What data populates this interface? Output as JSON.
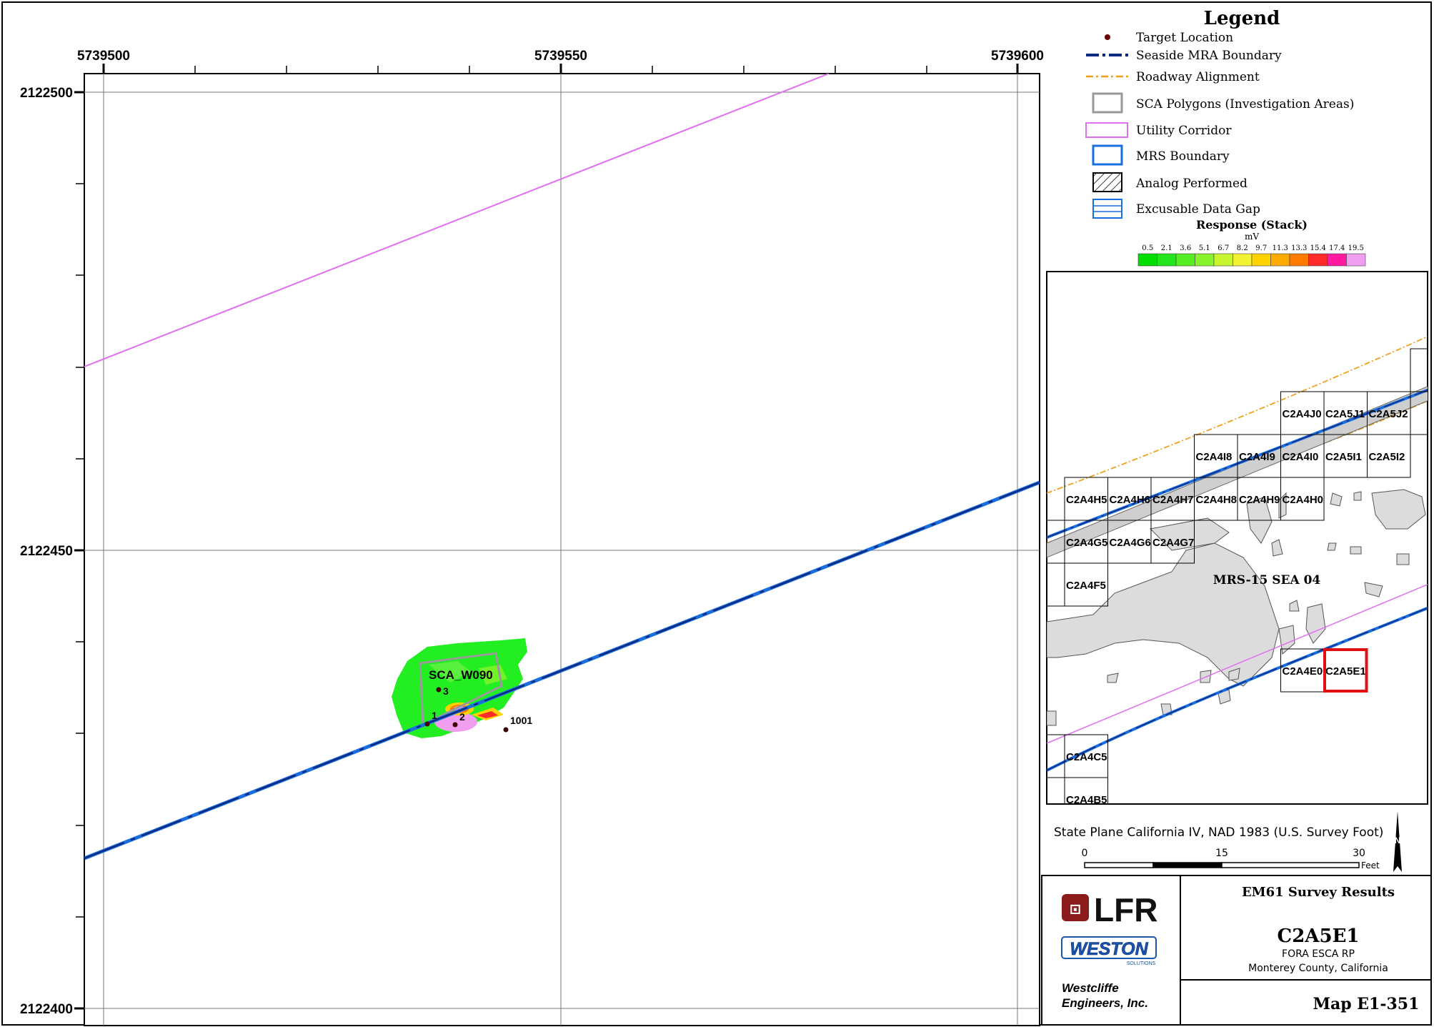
{
  "map": {
    "x_ticks": [
      "5739500",
      "5739550",
      "5739600"
    ],
    "y_ticks": [
      "2122500",
      "2122450",
      "2122400"
    ],
    "sca_label": "SCA_W090",
    "targets": [
      {
        "label": "1"
      },
      {
        "label": "2"
      },
      {
        "label": "3"
      },
      {
        "label": "1001"
      }
    ]
  },
  "legend": {
    "title": "Legend",
    "items": [
      {
        "label": "Target Location",
        "icon": "target-dot-icon"
      },
      {
        "label": "Seaside MRA Boundary",
        "icon": "dash-dot-line-icon"
      },
      {
        "label": "Roadway Alignment",
        "icon": "orange-dash-line-icon"
      },
      {
        "label": "SCA Polygons (Investigation Areas)",
        "icon": "gray-box-icon"
      },
      {
        "label": "Utility Corridor",
        "icon": "violet-box-icon"
      },
      {
        "label": "MRS Boundary",
        "icon": "blue-box-icon"
      },
      {
        "label": "Analog Performed",
        "icon": "hatch-box-icon"
      },
      {
        "label": "Excusable Data Gap",
        "icon": "blue-lines-box-icon"
      }
    ],
    "response_title": "Response (Stack)",
    "response_unit": "mV",
    "scale_values": [
      "0.5",
      "2.1",
      "3.6",
      "5.1",
      "6.7",
      "8.2",
      "9.7",
      "11.3",
      "13.3",
      "15.4",
      "17.4",
      "19.5"
    ],
    "scale_colors": [
      "#00dd00",
      "#22e51c",
      "#55ee22",
      "#88f22a",
      "#c8f52e",
      "#f2f233",
      "#ffd200",
      "#ffaa00",
      "#ff7a00",
      "#ff2a2a",
      "#ff1aa0",
      "#f09ef0"
    ]
  },
  "inset": {
    "area_label": "MRS-15 SEA 04",
    "tiles": [
      "C2A4J0",
      "C2A5J1",
      "C2A5J2",
      "C2A4I8",
      "C2A4I9",
      "C2A4I0",
      "C2A5I1",
      "C2A5I2",
      "C2A4H5",
      "C2A4H6",
      "C2A4H7",
      "C2A4H8",
      "C2A4H9",
      "C2A4H0",
      "C2A4G5",
      "C2A4G6",
      "C2A4G7",
      "C2A4F5",
      "C2A4E0",
      "C2A5E1",
      "C2A4C5",
      "C2A4B5"
    ],
    "highlight": "C2A5E1"
  },
  "projection": "State Plane California IV, NAD 1983 (U.S. Survey Foot)",
  "scalebar": {
    "labels": [
      "0",
      "15",
      "30"
    ],
    "unit": "Feet"
  },
  "north_arrow": "N",
  "title_block": {
    "logo1": "LFR",
    "logo2": "WESTON",
    "logo2_sub": "SOLUTIONS",
    "company_line1": "Westcliffe",
    "company_line2": "Engineers, Inc.",
    "heading": "EM61 Survey Results",
    "grid_id": "C2A5E1",
    "project": "FORA ESCA RP",
    "county": "Monterey County, California",
    "map_number": "Map E1-351"
  }
}
